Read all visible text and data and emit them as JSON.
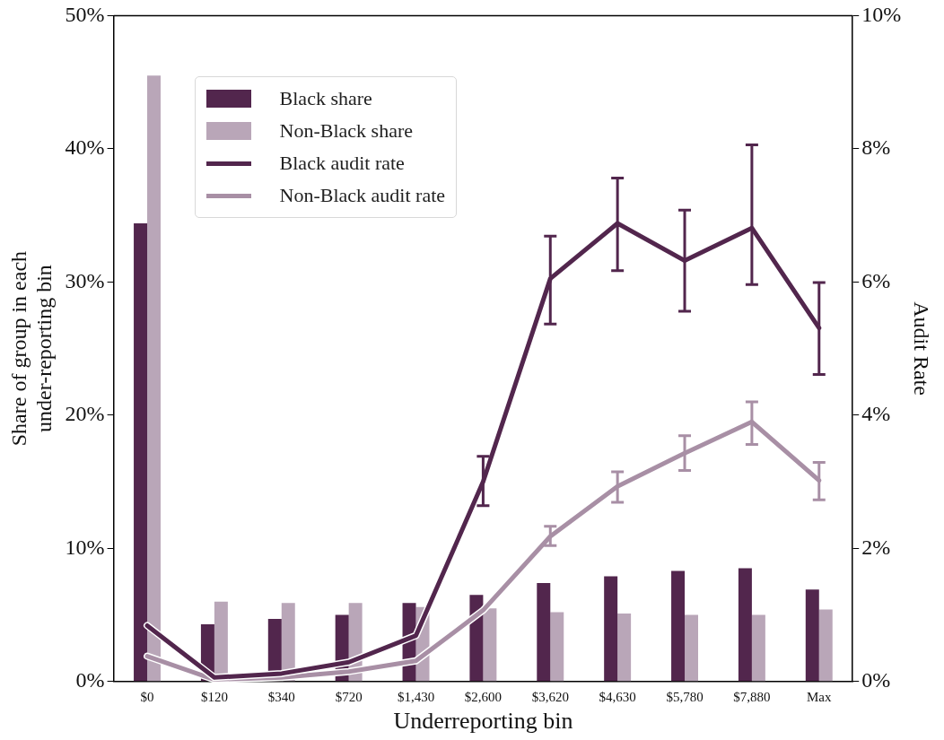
{
  "chart_data": {
    "type": "bar",
    "xlabel": "Underreporting bin",
    "ylabel": "Share of group in each under-reporting bin",
    "y2label": "Audit Rate",
    "categories": [
      "$0",
      "$120",
      "$340",
      "$720",
      "$1,430",
      "$2,600",
      "$3,620",
      "$4,630",
      "$5,780",
      "$7,880",
      "Max"
    ],
    "series": [
      {
        "name": "Black share",
        "color": "#52264d",
        "values": [
          34.4,
          4.3,
          4.7,
          5.0,
          5.9,
          6.5,
          7.4,
          7.9,
          8.3,
          8.5,
          6.9
        ]
      },
      {
        "name": "Non-Black share",
        "color": "#b9a6b8",
        "values": [
          45.5,
          6.0,
          5.9,
          5.9,
          5.6,
          5.5,
          5.2,
          5.1,
          5.0,
          5.0,
          5.4
        ]
      },
      {
        "name": "Black audit rate",
        "type": "line",
        "axis": "y2",
        "color": "#52264d",
        "values": [
          0.84,
          0.06,
          0.12,
          0.29,
          0.69,
          3.0,
          6.05,
          6.88,
          6.32,
          6.81,
          5.31
        ],
        "errors": [
          null,
          null,
          null,
          null,
          null,
          [
            2.64,
            3.38
          ],
          [
            5.37,
            6.69
          ],
          [
            6.17,
            7.56
          ],
          [
            5.56,
            7.08
          ],
          [
            5.96,
            8.06
          ],
          [
            4.61,
            5.99
          ]
        ]
      },
      {
        "name": "Non-Black audit rate",
        "type": "line",
        "axis": "y2",
        "color": "#a88fa5",
        "values": [
          0.38,
          0.03,
          0.06,
          0.15,
          0.31,
          1.07,
          2.18,
          2.93,
          3.43,
          3.9,
          3.02
        ],
        "errors": [
          null,
          null,
          null,
          null,
          null,
          null,
          [
            2.04,
            2.33
          ],
          [
            2.69,
            3.15
          ],
          [
            3.17,
            3.69
          ],
          [
            3.56,
            4.2
          ],
          [
            2.73,
            3.29
          ]
        ]
      }
    ],
    "ylim": [
      0,
      50
    ],
    "yticks": [
      {
        "value": 0,
        "label": "0%"
      },
      {
        "value": 10,
        "label": "10%"
      },
      {
        "value": 20,
        "label": "20%"
      },
      {
        "value": 30,
        "label": "30%"
      },
      {
        "value": 40,
        "label": "40%"
      },
      {
        "value": 50,
        "label": "50%"
      }
    ],
    "y2lim": [
      0,
      10
    ],
    "y2ticks": [
      {
        "value": 0,
        "label": "0%"
      },
      {
        "value": 2,
        "label": "2%"
      },
      {
        "value": 4,
        "label": "4%"
      },
      {
        "value": 6,
        "label": "6%"
      },
      {
        "value": 8,
        "label": "8%"
      },
      {
        "value": 10,
        "label": "10%"
      }
    ],
    "grid": false,
    "legend": "top left",
    "marker": "none",
    "line_style": "solid"
  }
}
